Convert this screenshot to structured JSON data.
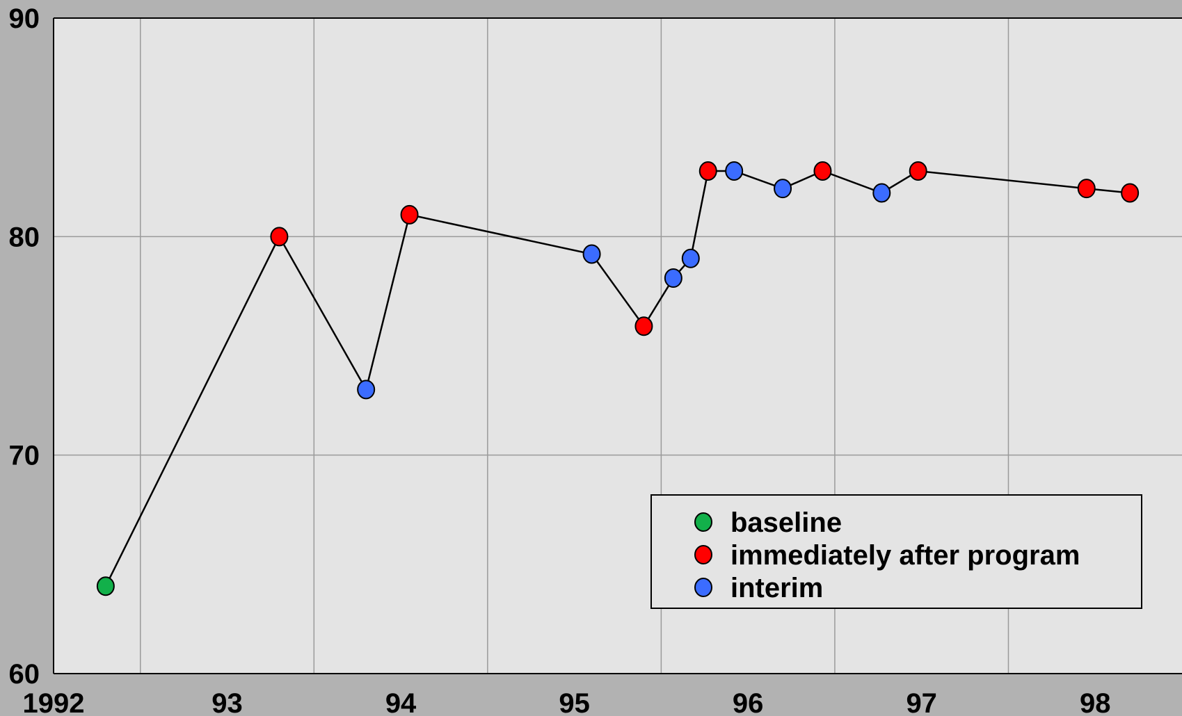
{
  "chart_data": {
    "type": "line",
    "title": "",
    "xlabel": "",
    "ylabel": "",
    "ylim": [
      60,
      90
    ],
    "yticks": [
      60,
      70,
      80,
      90
    ],
    "xlim": [
      1992.0,
      1998.5
    ],
    "xtick_labels": [
      {
        "x": 1992,
        "label": "1992"
      },
      {
        "x": 1993,
        "label": "93"
      },
      {
        "x": 1994,
        "label": "94"
      },
      {
        "x": 1995,
        "label": "95"
      },
      {
        "x": 1996,
        "label": "96"
      },
      {
        "x": 1997,
        "label": "97"
      },
      {
        "x": 1998,
        "label": "98"
      }
    ],
    "vgrid_x": [
      1992.5,
      1993.5,
      1994.5,
      1995.5,
      1996.5,
      1997.5
    ],
    "grid": true,
    "legend_position": "bottom-right",
    "series_colors": {
      "baseline": "#12b04a",
      "post": "#ff0000",
      "interim": "#3b6cff"
    },
    "legend": [
      {
        "key": "baseline",
        "label": "baseline"
      },
      {
        "key": "post",
        "label": "immediately after program"
      },
      {
        "key": "interim",
        "label": "interim"
      }
    ],
    "points": [
      {
        "x": 1992.3,
        "y": 64.0,
        "type": "baseline"
      },
      {
        "x": 1993.3,
        "y": 80.0,
        "type": "post"
      },
      {
        "x": 1993.8,
        "y": 73.0,
        "type": "interim"
      },
      {
        "x": 1994.05,
        "y": 81.0,
        "type": "post"
      },
      {
        "x": 1995.1,
        "y": 79.2,
        "type": "interim"
      },
      {
        "x": 1995.4,
        "y": 75.9,
        "type": "post"
      },
      {
        "x": 1995.57,
        "y": 78.1,
        "type": "interim"
      },
      {
        "x": 1995.67,
        "y": 79.0,
        "type": "interim"
      },
      {
        "x": 1995.77,
        "y": 83.0,
        "type": "post"
      },
      {
        "x": 1995.92,
        "y": 83.0,
        "type": "interim"
      },
      {
        "x": 1996.2,
        "y": 82.2,
        "type": "interim"
      },
      {
        "x": 1996.43,
        "y": 83.0,
        "type": "post"
      },
      {
        "x": 1996.77,
        "y": 82.0,
        "type": "interim"
      },
      {
        "x": 1996.98,
        "y": 83.0,
        "type": "post"
      },
      {
        "x": 1997.95,
        "y": 82.2,
        "type": "post"
      },
      {
        "x": 1998.2,
        "y": 82.0,
        "type": "post"
      }
    ]
  }
}
